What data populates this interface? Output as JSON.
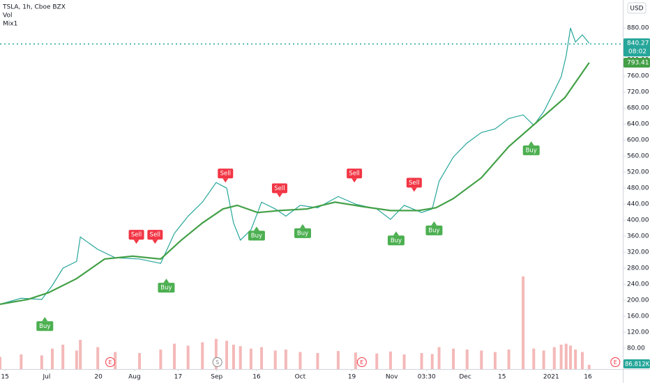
{
  "chart_data": {
    "type": "line",
    "currency": "USD",
    "xlim": [
      0,
      100
    ],
    "ylim": [
      28,
      950
    ],
    "y2lim": [
      0,
      2000000
    ],
    "grid": false,
    "yticks": [
      {
        "value": 880,
        "label": "880.00"
      },
      {
        "value": 840,
        "label": "840.00"
      },
      {
        "value": 800,
        "label": "800.00"
      },
      {
        "value": 760,
        "label": "760.00"
      },
      {
        "value": 720,
        "label": "720.00"
      },
      {
        "value": 680,
        "label": "680.00"
      },
      {
        "value": 640,
        "label": "640.00"
      },
      {
        "value": 600,
        "label": "600.00"
      },
      {
        "value": 560,
        "label": "560.00"
      },
      {
        "value": 520,
        "label": "520.00"
      },
      {
        "value": 480,
        "label": "480.00"
      },
      {
        "value": 440,
        "label": "440.00"
      },
      {
        "value": 400,
        "label": "400.00"
      },
      {
        "value": 360,
        "label": "360.00"
      },
      {
        "value": 320,
        "label": "320.00"
      },
      {
        "value": 280,
        "label": "280.00"
      },
      {
        "value": 240,
        "label": "240.00"
      },
      {
        "value": 200,
        "label": "200.00"
      },
      {
        "value": 160,
        "label": "160.00"
      },
      {
        "value": 120,
        "label": "120.00"
      },
      {
        "value": 80,
        "label": "80.00"
      }
    ],
    "xticks": [
      {
        "value": 0.8,
        "label": "15"
      },
      {
        "value": 7.5,
        "label": "Jul"
      },
      {
        "value": 15.8,
        "label": "20"
      },
      {
        "value": 21.6,
        "label": "Aug"
      },
      {
        "value": 28.6,
        "label": "17"
      },
      {
        "value": 34.8,
        "label": "Sep"
      },
      {
        "value": 41.2,
        "label": "16"
      },
      {
        "value": 48.2,
        "label": "Oct"
      },
      {
        "value": 56.5,
        "label": "19"
      },
      {
        "value": 62.9,
        "label": "Nov"
      },
      {
        "value": 68.5,
        "label": "03:30"
      },
      {
        "value": 74.7,
        "label": "Dec"
      },
      {
        "value": 80.6,
        "label": "15"
      },
      {
        "value": 88.5,
        "label": "2021"
      },
      {
        "value": 94.4,
        "label": "16"
      }
    ],
    "series": [
      {
        "name": "TSLA, 1h, Cboe BZX",
        "color": "#26a69a",
        "x": [
          0,
          3.4,
          6.7,
          8.4,
          10.1,
          12.3,
          12.9,
          15.7,
          18.5,
          22.4,
          25.8,
          28,
          30.2,
          32.5,
          34.7,
          36.4,
          37.5,
          38.6,
          40.3,
          42,
          44.2,
          45.9,
          48.2,
          51,
          54.3,
          57.1,
          60.5,
          62.7,
          64.9,
          67.7,
          69.4,
          70.5,
          72.8,
          75,
          77.3,
          79.5,
          81.7,
          84,
          85.7,
          87.3,
          89,
          90.1,
          90.9,
          91.6,
          92.4,
          93.5,
          94.6
        ],
        "values": [
          190,
          205,
          202,
          237,
          280,
          297,
          358,
          327,
          306,
          303,
          292,
          367,
          410,
          445,
          494,
          480,
          393,
          350,
          376,
          445,
          428,
          410,
          437,
          431,
          459,
          440,
          428,
          402,
          437,
          419,
          428,
          497,
          558,
          593,
          619,
          628,
          654,
          663,
          637,
          671,
          723,
          758,
          810,
          880,
          845,
          863,
          842
        ]
      },
      {
        "name": "Vol",
        "color": "#ef9a9a",
        "axis": "y2",
        "x": [
          0,
          3.4,
          6.7,
          8.4,
          10.1,
          12.3,
          12.9,
          15.7,
          18.5,
          22.4,
          25.8,
          28,
          30.2,
          32.5,
          34.7,
          36.4,
          37.5,
          38.6,
          40.3,
          42,
          44.2,
          45.9,
          48.2,
          51,
          54.3,
          57.1,
          60.5,
          62.7,
          64.9,
          67.7,
          69.4,
          70.5,
          72.8,
          75,
          77.3,
          79.5,
          81.7,
          84,
          85.7,
          87.3,
          89,
          90.1,
          90.9,
          91.6,
          92.4,
          93.5,
          94.6
        ],
        "values": [
          250000,
          300000,
          280000,
          420000,
          500000,
          380000,
          600000,
          450000,
          350000,
          330000,
          400000,
          520000,
          480000,
          550000,
          620000,
          580000,
          500000,
          470000,
          420000,
          450000,
          380000,
          400000,
          350000,
          330000,
          370000,
          340000,
          320000,
          360000,
          300000,
          330000,
          310000,
          450000,
          420000,
          400000,
          380000,
          350000,
          400000,
          1900000,
          420000,
          380000,
          450000,
          500000,
          520000,
          480000,
          400000,
          350000,
          86812
        ],
        "last_label": "86.812K"
      },
      {
        "name": "Mix1",
        "color": "#43a047",
        "x": [
          0,
          4.5,
          7.8,
          12.3,
          16.8,
          21.3,
          25.8,
          29.1,
          32.5,
          35.8,
          38.1,
          41.4,
          44.8,
          49.3,
          53.8,
          58.2,
          62.7,
          67.2,
          70,
          72.8,
          77.3,
          81.7,
          86.2,
          90.7,
          94.6
        ],
        "values": [
          190,
          202,
          219,
          254,
          303,
          310,
          303,
          350,
          393,
          428,
          437,
          419,
          424,
          428,
          445,
          434,
          424,
          424,
          431,
          454,
          506,
          584,
          645,
          706,
          793.41
        ]
      }
    ],
    "last_price": 840.27,
    "countdown": "08:02",
    "signals": [
      {
        "label": "Buy",
        "x": 7.2,
        "value": 158
      },
      {
        "label": "Sell",
        "x": 21.9,
        "value": 341
      },
      {
        "label": "Sell",
        "x": 24.9,
        "value": 341
      },
      {
        "label": "Buy",
        "x": 26.7,
        "value": 254
      },
      {
        "label": "Sell",
        "x": 36.2,
        "value": 494
      },
      {
        "label": "Buy",
        "x": 41.2,
        "value": 384
      },
      {
        "label": "Sell",
        "x": 44.9,
        "value": 457
      },
      {
        "label": "Buy",
        "x": 48.6,
        "value": 390
      },
      {
        "label": "Sell",
        "x": 56.9,
        "value": 494
      },
      {
        "label": "Buy",
        "x": 63.6,
        "value": 372
      },
      {
        "label": "Sell",
        "x": 66.5,
        "value": 471
      },
      {
        "label": "Buy",
        "x": 69.7,
        "value": 397
      },
      {
        "label": "Buy",
        "x": 85.3,
        "value": 597
      }
    ],
    "events": [
      {
        "label": "E",
        "x": 17.7
      },
      {
        "label": "S",
        "x": 34.9
      },
      {
        "label": "E",
        "x": 58.1
      },
      {
        "label": "E",
        "x": 98.8
      }
    ]
  }
}
